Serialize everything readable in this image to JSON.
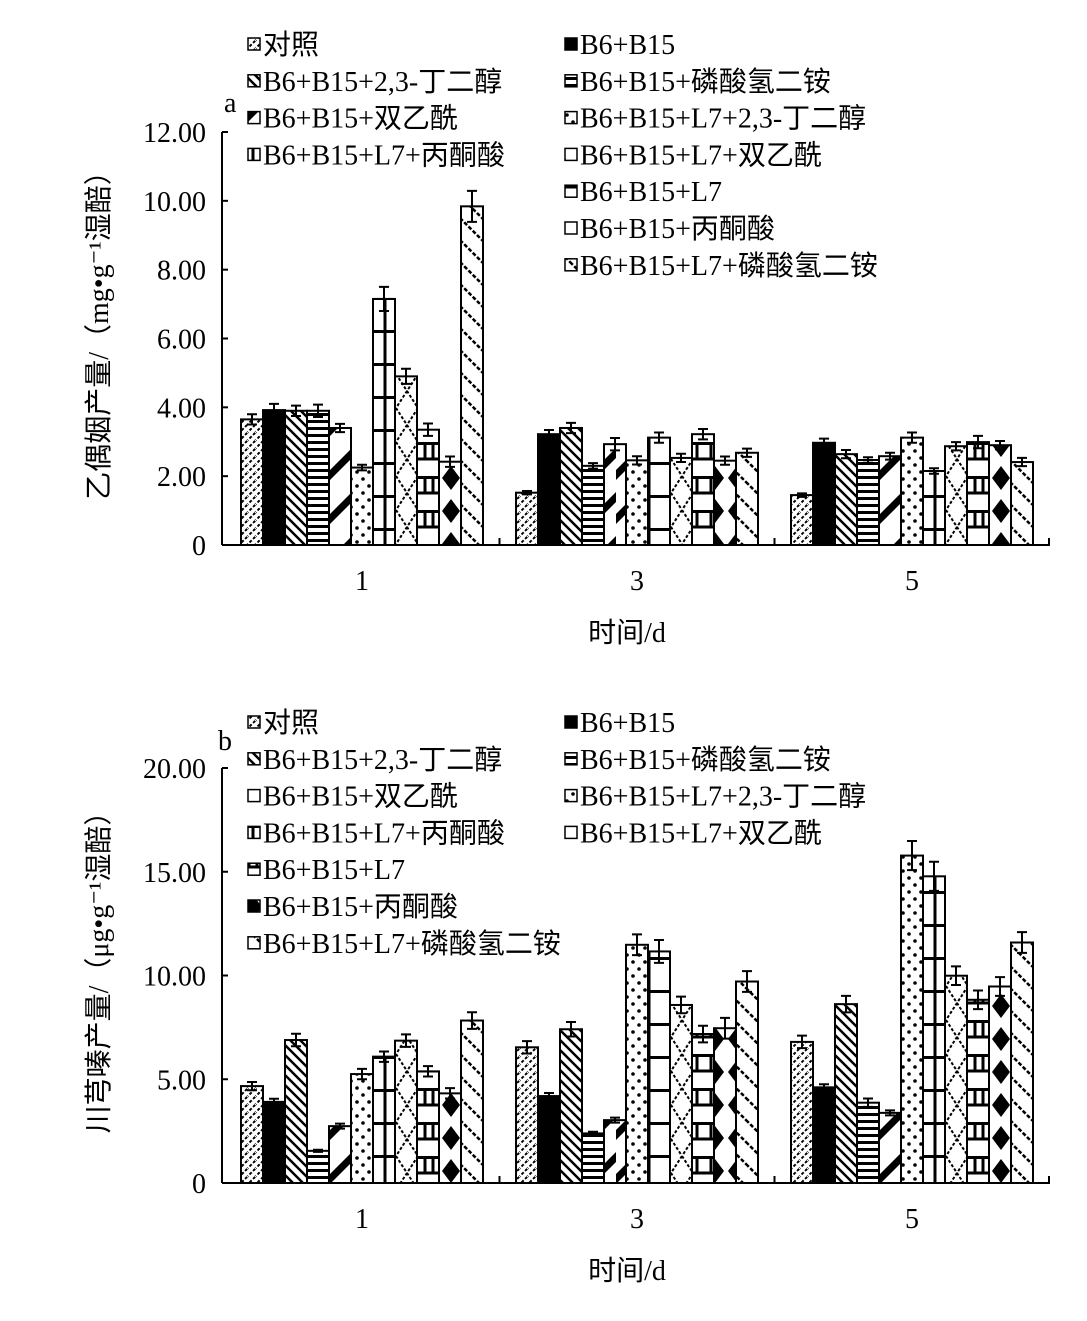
{
  "series_names": [
    "对照",
    "B6+B15",
    "B6+B15+2,3-丁二醇",
    "B6+B15+磷酸氢二铵",
    "B6+B15+双乙酰",
    "B6+B15+L7+2,3-丁二醇",
    "B6+B15+L7+丙酮酸",
    "B6+B15+L7+双乙酰",
    "B6+B15+L7",
    "B6+B15+丙酮酸",
    "B6+B15+L7+磷酸氢二铵"
  ],
  "chart_data": [
    {
      "type": "bar",
      "panel_label": "a",
      "title": "",
      "xlabel": "时间/d",
      "ylabel": "乙偶姻产量/（mg•g⁻¹湿醅）",
      "categories": [
        "1",
        "3",
        "5"
      ],
      "ylim": [
        0,
        12
      ],
      "yticks": [
        "0",
        "2.00",
        "4.00",
        "6.00",
        "8.00",
        "10.00",
        "12.00"
      ],
      "ytick_values": [
        0,
        2,
        4,
        6,
        8,
        10,
        12
      ],
      "grid": false,
      "legend_placement": "top",
      "legend_columns": [
        [
          0,
          2,
          4,
          6
        ],
        [
          1,
          3,
          5,
          7,
          8,
          9,
          10
        ]
      ],
      "series": [
        {
          "name": "对照",
          "values": [
            3.65,
            1.52,
            1.45
          ],
          "errors": [
            0.15,
            0.05,
            0.05
          ]
        },
        {
          "name": "B6+B15",
          "values": [
            3.92,
            3.22,
            2.97
          ],
          "errors": [
            0.18,
            0.12,
            0.12
          ]
        },
        {
          "name": "B6+B15+2,3-丁二醇",
          "values": [
            3.9,
            3.4,
            2.64
          ],
          "errors": [
            0.15,
            0.15,
            0.12
          ]
        },
        {
          "name": "B6+B15+磷酸氢二铵",
          "values": [
            3.9,
            2.3,
            2.47
          ],
          "errors": [
            0.18,
            0.08,
            0.08
          ]
        },
        {
          "name": "B6+B15+双乙酰",
          "values": [
            3.4,
            2.93,
            2.58
          ],
          "errors": [
            0.12,
            0.18,
            0.1
          ]
        },
        {
          "name": "B6+B15+L7+2,3-丁二醇",
          "values": [
            2.25,
            2.46,
            3.12
          ],
          "errors": [
            0.08,
            0.12,
            0.15
          ]
        },
        {
          "name": "B6+B15+L7+丙酮酸",
          "values": [
            7.15,
            3.12,
            2.15
          ],
          "errors": [
            0.35,
            0.15,
            0.08
          ]
        },
        {
          "name": "B6+B15+L7+双乙酰",
          "values": [
            4.9,
            2.53,
            2.87
          ],
          "errors": [
            0.22,
            0.12,
            0.12
          ]
        },
        {
          "name": "B6+B15+L7",
          "values": [
            3.35,
            3.22,
            2.99
          ],
          "errors": [
            0.18,
            0.15,
            0.18
          ]
        },
        {
          "name": "B6+B15+丙酮酸",
          "values": [
            2.42,
            2.45,
            2.9
          ],
          "errors": [
            0.15,
            0.12,
            0.12
          ]
        },
        {
          "name": "B6+B15+L7+磷酸氢二铵",
          "values": [
            9.84,
            2.68,
            2.41
          ],
          "errors": [
            0.45,
            0.12,
            0.12
          ]
        }
      ]
    },
    {
      "type": "bar",
      "panel_label": "b",
      "title": "",
      "xlabel": "时间/d",
      "ylabel": "川芎嗪产量/（μg•g⁻¹湿醅）",
      "categories": [
        "1",
        "3",
        "5"
      ],
      "ylim": [
        0,
        20
      ],
      "yticks": [
        "0",
        "5.00",
        "10.00",
        "15.00",
        "20.00"
      ],
      "ytick_values": [
        0,
        5,
        10,
        15,
        20
      ],
      "grid": false,
      "legend_placement": "top",
      "legend_columns": [
        [
          0,
          2,
          4,
          6,
          8,
          9,
          10
        ],
        [
          1,
          3,
          5,
          7
        ]
      ],
      "series": [
        {
          "name": "对照",
          "values": [
            4.67,
            6.54,
            6.8
          ],
          "errors": [
            0.2,
            0.3,
            0.3
          ]
        },
        {
          "name": "B6+B15",
          "values": [
            3.91,
            4.19,
            4.61
          ],
          "errors": [
            0.15,
            0.15,
            0.15
          ]
        },
        {
          "name": "B6+B15+2,3-丁二醇",
          "values": [
            6.89,
            7.41,
            8.62
          ],
          "errors": [
            0.3,
            0.35,
            0.4
          ]
        },
        {
          "name": "B6+B15+磷酸氢二铵",
          "values": [
            1.55,
            2.39,
            3.87
          ],
          "errors": [
            0.05,
            0.08,
            0.2
          ]
        },
        {
          "name": "B6+B15+双乙酰",
          "values": [
            2.74,
            3.03,
            3.38
          ],
          "errors": [
            0.12,
            0.12,
            0.12
          ]
        },
        {
          "name": "B6+B15+L7+2,3-丁二醇",
          "values": [
            5.25,
            11.48,
            15.78
          ],
          "errors": [
            0.25,
            0.5,
            0.7
          ]
        },
        {
          "name": "B6+B15+L7+丙酮酸",
          "values": [
            6.09,
            11.16,
            14.78
          ],
          "errors": [
            0.25,
            0.55,
            0.7
          ]
        },
        {
          "name": "B6+B15+L7+双乙酰",
          "values": [
            6.86,
            8.58,
            9.99
          ],
          "errors": [
            0.3,
            0.4,
            0.45
          ]
        },
        {
          "name": "B6+B15+L7",
          "values": [
            5.38,
            7.18,
            8.83
          ],
          "errors": [
            0.25,
            0.4,
            0.45
          ]
        },
        {
          "name": "B6+B15+丙酮酸",
          "values": [
            4.32,
            7.46,
            9.47
          ],
          "errors": [
            0.25,
            0.5,
            0.45
          ]
        },
        {
          "name": "B6+B15+L7+磷酸氢二铵",
          "values": [
            7.83,
            9.71,
            11.59
          ],
          "errors": [
            0.4,
            0.5,
            0.5
          ]
        }
      ]
    }
  ]
}
